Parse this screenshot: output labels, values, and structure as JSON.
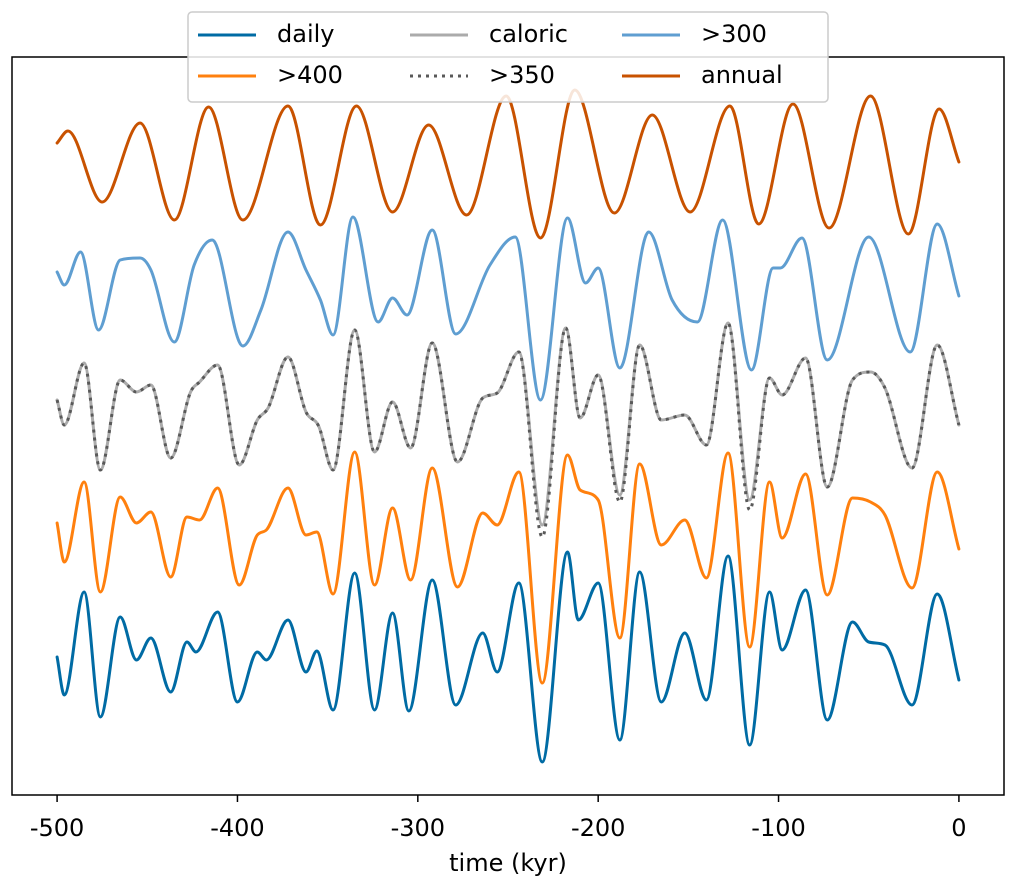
{
  "chart_data": {
    "type": "line",
    "xlabel": "time (kyr)",
    "xlim": [
      -525,
      25
    ],
    "xticks": [
      -500,
      -400,
      -300,
      -200,
      -100,
      0
    ],
    "ylim": [
      0,
      7.38
    ],
    "legend": "upper center",
    "legend_columns": 3,
    "series": [
      {
        "name": "daily",
        "color": "#006ba4",
        "linestyle": "solid",
        "x": [
          -500,
          -496,
          -485,
          -476,
          -465,
          -456,
          -448,
          -437,
          -428,
          -423,
          -411,
          -400,
          -389,
          -384,
          -372,
          -362,
          -356,
          -347,
          -335,
          -324,
          -314,
          -305,
          -292,
          -279,
          -264,
          -256,
          -244,
          -231,
          -217,
          -211,
          -200,
          -188,
          -177,
          -165,
          -152,
          -140,
          -128,
          -116,
          -105,
          -98,
          -85,
          -73,
          -59,
          -50,
          -41,
          -26,
          -12,
          0
        ],
        "values": [
          1.38,
          1.0,
          2.03,
          0.78,
          1.78,
          1.35,
          1.57,
          1.03,
          1.53,
          1.43,
          1.83,
          0.93,
          1.43,
          1.35,
          1.75,
          1.23,
          1.44,
          0.85,
          2.22,
          0.85,
          1.82,
          0.84,
          2.15,
          0.9,
          1.62,
          1.23,
          2.12,
          0.33,
          2.43,
          1.75,
          2.12,
          0.55,
          2.23,
          0.93,
          1.62,
          0.95,
          2.39,
          0.5,
          2.03,
          1.45,
          2.05,
          0.75,
          1.73,
          1.53,
          1.5,
          0.9,
          2.01,
          1.15
        ]
      },
      {
        "name": ">400",
        "color": "#ff800e",
        "linestyle": "solid",
        "x": [
          -500,
          -496,
          -485,
          -476,
          -465,
          -456,
          -448,
          -437,
          -428,
          -421,
          -411,
          -399,
          -389,
          -384,
          -372,
          -362,
          -356,
          -347,
          -335,
          -324,
          -314,
          -304,
          -292,
          -278,
          -264,
          -256,
          -244,
          -231,
          -217,
          -210,
          -200,
          -188,
          -177,
          -165,
          -152,
          -140,
          -128,
          -116,
          -105,
          -98,
          -85,
          -73,
          -59,
          -49,
          -41,
          -26,
          -12,
          0
        ],
        "values": [
          2.72,
          2.33,
          3.13,
          2.03,
          2.98,
          2.72,
          2.83,
          2.18,
          2.78,
          2.75,
          3.07,
          2.1,
          2.6,
          2.65,
          3.07,
          2.6,
          2.63,
          2.01,
          3.43,
          2.1,
          2.87,
          2.15,
          3.27,
          2.08,
          2.82,
          2.7,
          3.23,
          1.12,
          3.4,
          3.05,
          2.95,
          1.57,
          3.31,
          2.5,
          2.75,
          2.17,
          3.42,
          1.48,
          3.13,
          2.57,
          3.21,
          2.0,
          2.97,
          2.93,
          2.8,
          2.07,
          3.23,
          2.46
        ]
      },
      {
        "name": "caloric",
        "color": "#ababab",
        "linestyle": "solid",
        "x": [
          -500,
          -496,
          -485,
          -476,
          -465,
          -456,
          -448,
          -437,
          -426,
          -421,
          -411,
          -399,
          -389,
          -383,
          -372,
          -362,
          -355,
          -347,
          -335,
          -324,
          -314,
          -304,
          -292,
          -278,
          -264,
          -256,
          -244,
          -231,
          -218,
          -210,
          -200,
          -188,
          -177,
          -165,
          -152,
          -140,
          -128,
          -116,
          -105,
          -98,
          -85,
          -73,
          -59,
          -49,
          -41,
          -26,
          -12,
          0
        ],
        "values": [
          3.95,
          3.7,
          4.32,
          3.25,
          4.15,
          4.03,
          4.1,
          3.37,
          4.03,
          4.13,
          4.3,
          3.3,
          3.75,
          3.87,
          4.38,
          3.83,
          3.69,
          3.25,
          4.65,
          3.43,
          3.93,
          3.47,
          4.52,
          3.33,
          3.97,
          4.02,
          4.43,
          2.7,
          4.67,
          3.77,
          4.2,
          3.0,
          4.5,
          3.75,
          3.8,
          3.5,
          4.72,
          2.95,
          4.17,
          4.0,
          4.37,
          3.08,
          4.15,
          4.23,
          4.07,
          3.27,
          4.5,
          3.7
        ]
      },
      {
        "name": ">350",
        "color": "#595959",
        "linestyle": "dotted",
        "x": [
          -500,
          -496,
          -485,
          -476,
          -465,
          -456,
          -448,
          -437,
          -426,
          -421,
          -411,
          -399,
          -389,
          -383,
          -372,
          -362,
          -355,
          -347,
          -335,
          -324,
          -314,
          -304,
          -292,
          -278,
          -264,
          -256,
          -244,
          -231,
          -218,
          -210,
          -200,
          -188,
          -177,
          -165,
          -152,
          -140,
          -128,
          -116,
          -105,
          -98,
          -85,
          -73,
          -59,
          -49,
          -41,
          -26,
          -12,
          0
        ],
        "values": [
          3.95,
          3.7,
          4.32,
          3.25,
          4.15,
          4.03,
          4.1,
          3.37,
          4.03,
          4.13,
          4.3,
          3.3,
          3.75,
          3.87,
          4.38,
          3.83,
          3.69,
          3.25,
          4.65,
          3.43,
          3.93,
          3.47,
          4.52,
          3.33,
          3.97,
          4.02,
          4.43,
          2.58,
          4.67,
          3.77,
          4.2,
          2.93,
          4.5,
          3.75,
          3.8,
          3.5,
          4.72,
          2.85,
          4.17,
          4.0,
          4.37,
          3.08,
          4.15,
          4.23,
          4.07,
          3.27,
          4.5,
          3.7
        ]
      },
      {
        "name": ">300",
        "color": "#5f9ed1",
        "linestyle": "solid",
        "x": [
          -500,
          -496,
          -487,
          -477,
          -465,
          -454,
          -448,
          -435,
          -424,
          -414,
          -397,
          -387,
          -372,
          -362,
          -354,
          -347,
          -336,
          -322,
          -314,
          -306,
          -292,
          -279,
          -260,
          -246,
          -232,
          -217,
          -207,
          -200,
          -188,
          -172,
          -159,
          -145,
          -131,
          -115,
          -103,
          -99,
          -87,
          -73,
          -50,
          -27,
          -12,
          0
        ],
        "values": [
          5.23,
          5.1,
          5.43,
          4.65,
          5.35,
          5.37,
          5.25,
          4.53,
          5.3,
          5.55,
          4.49,
          4.85,
          5.63,
          5.25,
          4.95,
          4.6,
          5.78,
          4.73,
          4.97,
          4.8,
          5.65,
          4.61,
          5.3,
          5.58,
          3.95,
          5.77,
          5.12,
          5.27,
          4.27,
          5.63,
          4.95,
          4.73,
          5.75,
          4.25,
          5.27,
          5.27,
          5.57,
          4.35,
          5.58,
          4.43,
          5.71,
          4.99
        ]
      },
      {
        "name": "annual",
        "color": "#c85200",
        "linestyle": "solid",
        "x": [
          -500,
          -494,
          -475,
          -454,
          -435,
          -416,
          -397,
          -372,
          -354,
          -334,
          -314,
          -294,
          -273,
          -251,
          -232,
          -213,
          -191,
          -170,
          -149,
          -127,
          -111,
          -92,
          -72,
          -49,
          -28,
          -11,
          0
        ],
        "values": [
          6.52,
          6.64,
          5.93,
          6.72,
          5.75,
          6.88,
          5.75,
          6.89,
          5.7,
          6.89,
          5.83,
          6.7,
          5.8,
          6.99,
          5.57,
          7.05,
          5.82,
          6.8,
          5.83,
          6.89,
          5.71,
          6.91,
          5.67,
          6.99,
          5.61,
          6.86,
          6.33
        ]
      }
    ]
  }
}
